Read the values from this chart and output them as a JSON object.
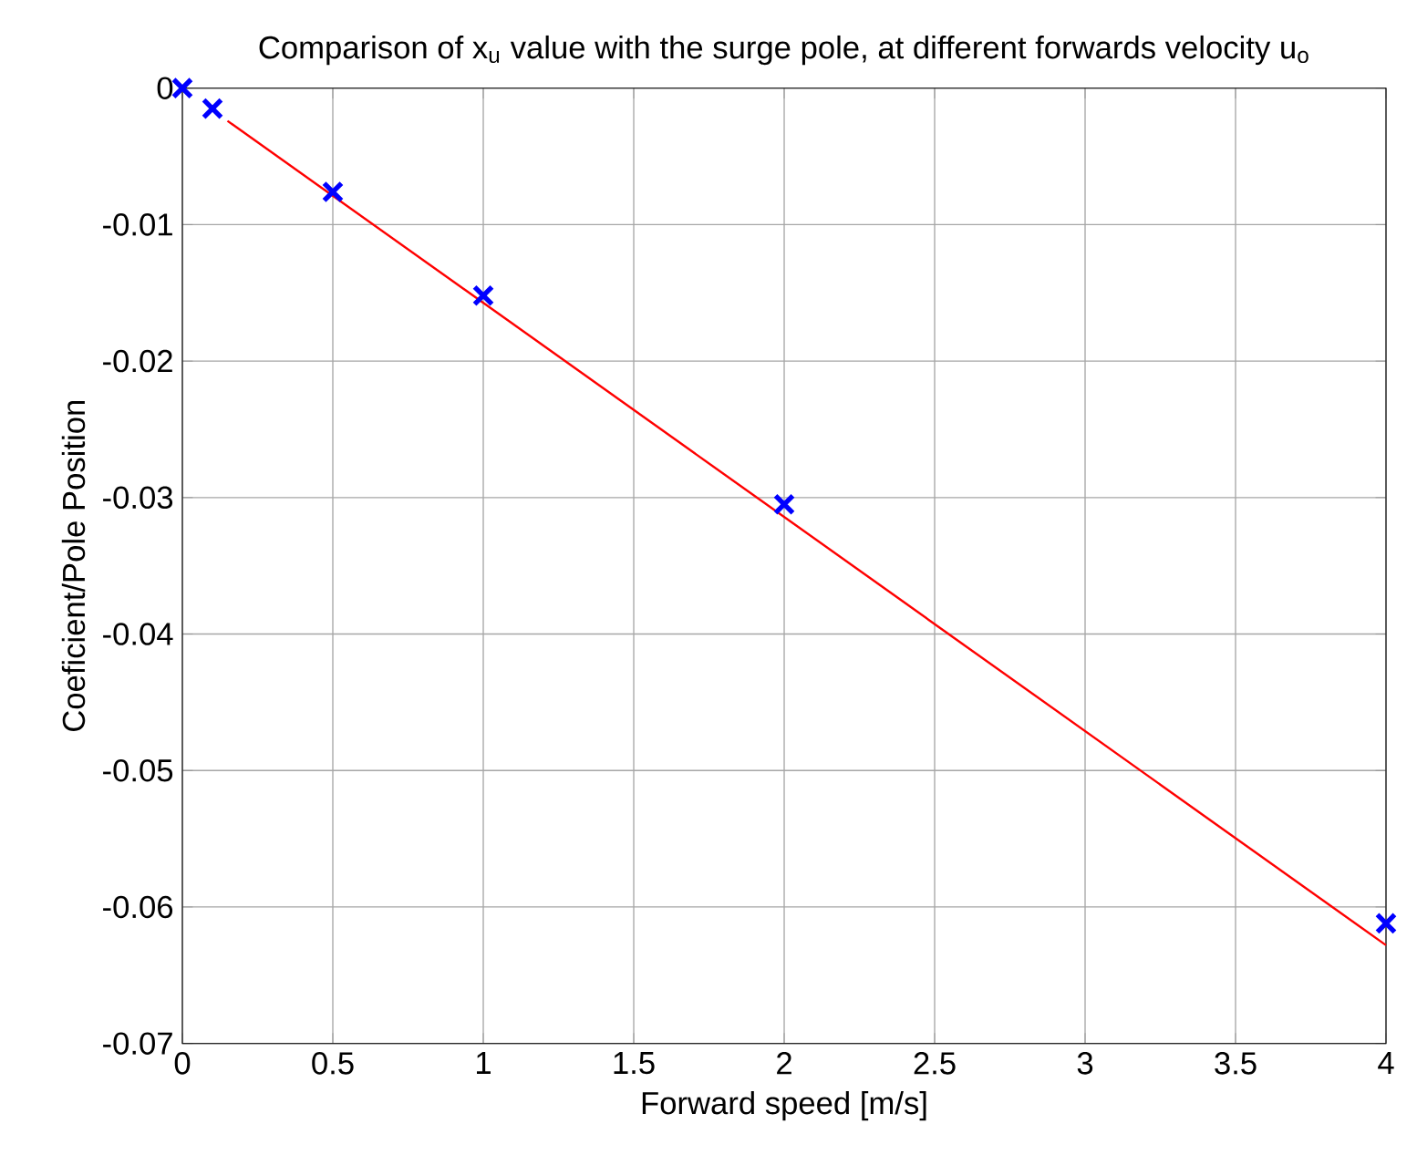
{
  "chart_data": {
    "type": "scatter",
    "title": "Comparison of x$_{u}$ value with the surge pole, at different forwards velocity u$_{o}$",
    "xlabel": "Forward speed [m/s]",
    "ylabel": "Coeficient/Pole Position",
    "xlim": [
      0,
      4
    ],
    "ylim": [
      -0.07,
      0
    ],
    "xticks": [
      0,
      0.5,
      1,
      1.5,
      2,
      2.5,
      3,
      3.5,
      4
    ],
    "yticks": [
      -0.07,
      -0.06,
      -0.05,
      -0.04,
      -0.03,
      -0.02,
      -0.01,
      0
    ],
    "grid": true,
    "series": [
      {
        "color": "#0000ff",
        "marker": "cross",
        "x": [
          0,
          0.1,
          0.5,
          1,
          2,
          4
        ],
        "values": [
          0,
          -0.0015,
          -0.0076,
          -0.0152,
          -0.0305,
          -0.0612
        ]
      },
      {
        "type": "line",
        "color": "#ff0000",
        "x": [
          0.15,
          4
        ],
        "values": [
          -0.0024,
          -0.0628
        ]
      }
    ]
  }
}
